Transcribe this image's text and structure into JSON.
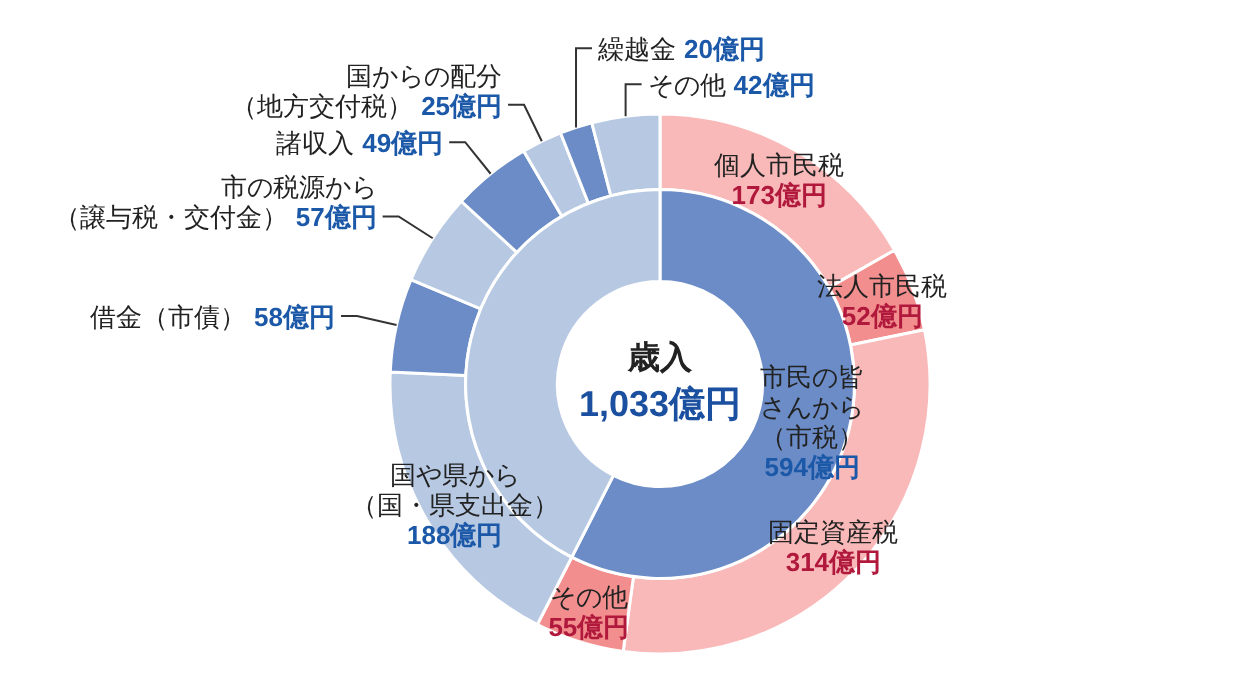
{
  "chart_data": [
    {
      "type": "donut",
      "title": "歳入",
      "subtitle": "1,033億円",
      "categories": [
        "個人市民税",
        "法人市民税",
        "固定資産税",
        "その他",
        "国や県から（国・県支出金）",
        "借金（市債）",
        "市の税源から（譲与税・交付金）",
        "諸収入",
        "国からの配分（地方交付税）",
        "繰越金",
        "その他"
      ],
      "values": [
        173,
        52,
        314,
        55,
        188,
        58,
        57,
        49,
        25,
        20,
        42
      ],
      "colors": [
        "#f9b9b9",
        "#f38e8e",
        "#f9b9b9",
        "#f38e8e",
        "#b6c8e2",
        "#6b8cc7",
        "#b6c8e2",
        "#6b8cc7",
        "#b6c8e2",
        "#6b8cc7",
        "#b6c8e2"
      ],
      "value_labels": [
        "173億円",
        "52億円",
        "314億円",
        "55億円",
        "188億円",
        "58億円",
        "57億円",
        "49億円",
        "25億円",
        "20億円",
        "42億円"
      ]
    },
    {
      "type": "donut",
      "categories": [
        "市民の皆さんから（市税）",
        null
      ],
      "values": [
        594,
        439
      ],
      "colors": [
        "#6b8cc7",
        "#b6c8e2"
      ],
      "value_labels": [
        "594億円",
        null
      ]
    }
  ]
}
